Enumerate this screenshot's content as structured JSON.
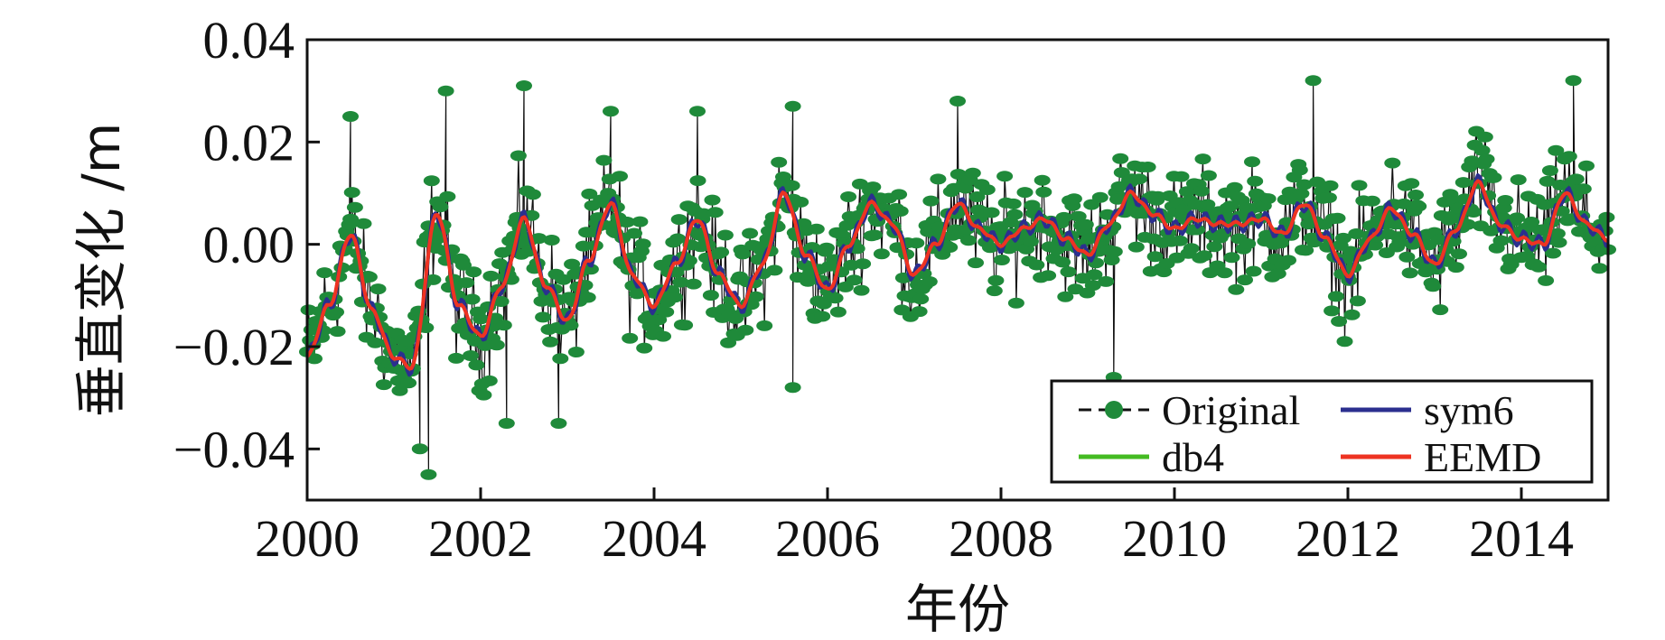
{
  "chart_data": {
    "type": "line",
    "title": "",
    "xlabel": "年份",
    "ylabel": "垂直变化 /m",
    "xlim": [
      2000,
      2015
    ],
    "ylim": [
      -0.05,
      0.04
    ],
    "xticks": [
      {
        "value": 2000,
        "label": "2000"
      },
      {
        "value": 2002,
        "label": "2002"
      },
      {
        "value": 2004,
        "label": "2004"
      },
      {
        "value": 2006,
        "label": "2006"
      },
      {
        "value": 2008,
        "label": "2008"
      },
      {
        "value": 2010,
        "label": "2010"
      },
      {
        "value": 2012,
        "label": "2012"
      },
      {
        "value": 2014,
        "label": "2014"
      }
    ],
    "yticks": [
      {
        "value": 0.04,
        "label": "0.04"
      },
      {
        "value": 0.02,
        "label": "0.02"
      },
      {
        "value": 0.0,
        "label": "0.00"
      },
      {
        "value": -0.02,
        "label": "−0.02"
      },
      {
        "value": -0.04,
        "label": "−0.04"
      }
    ],
    "grid": false,
    "legend_position": "bottom-right",
    "series": [
      {
        "name": "Original",
        "color": "#1f8a3a",
        "marker": "circle",
        "line_color": "#111111"
      },
      {
        "name": "db4",
        "color": "#44bb22"
      },
      {
        "name": "sym6",
        "color": "#2b2f8f"
      },
      {
        "name": "EEMD",
        "color": "#ee3322"
      }
    ],
    "trend_x": [
      2000.0,
      2000.25,
      2000.5,
      2000.75,
      2001.0,
      2001.2,
      2001.5,
      2001.75,
      2002.0,
      2002.25,
      2002.5,
      2002.75,
      2003.0,
      2003.25,
      2003.5,
      2003.75,
      2004.0,
      2004.25,
      2004.5,
      2004.75,
      2005.0,
      2005.25,
      2005.5,
      2005.75,
      2006.0,
      2006.25,
      2006.5,
      2006.75,
      2007.0,
      2007.25,
      2007.5,
      2007.75,
      2008.0,
      2008.25,
      2008.5,
      2008.75,
      2009.0,
      2009.25,
      2009.5,
      2009.75,
      2010.0,
      2010.25,
      2010.5,
      2010.75,
      2011.0,
      2011.25,
      2011.5,
      2011.75,
      2012.0,
      2012.25,
      2012.5,
      2012.75,
      2013.0,
      2013.25,
      2013.5,
      2013.75,
      2014.0,
      2014.25,
      2014.5,
      2014.75,
      2015.0
    ],
    "trend_y": [
      -0.022,
      -0.012,
      0.002,
      -0.013,
      -0.022,
      -0.024,
      0.006,
      -0.012,
      -0.018,
      -0.008,
      0.005,
      -0.008,
      -0.015,
      -0.003,
      0.008,
      -0.006,
      -0.012,
      -0.004,
      0.005,
      -0.006,
      -0.012,
      -0.004,
      0.01,
      -0.002,
      -0.009,
      0.0,
      0.008,
      0.004,
      -0.006,
      0.0,
      0.008,
      0.003,
      0.0,
      0.003,
      0.005,
      0.001,
      -0.002,
      0.004,
      0.01,
      0.006,
      0.003,
      0.005,
      0.004,
      0.004,
      0.005,
      0.002,
      0.008,
      0.001,
      -0.006,
      0.001,
      0.007,
      0.002,
      -0.004,
      0.003,
      0.012,
      0.004,
      0.001,
      0.0,
      0.01,
      0.004,
      0.001
    ],
    "original_amplitude": 0.016,
    "original_extremes": [
      {
        "x": 2001.4,
        "y": -0.045
      },
      {
        "x": 2001.3,
        "y": -0.04
      },
      {
        "x": 2002.5,
        "y": 0.031
      },
      {
        "x": 2001.6,
        "y": 0.03
      },
      {
        "x": 2000.5,
        "y": 0.025
      },
      {
        "x": 2003.5,
        "y": 0.026
      },
      {
        "x": 2004.5,
        "y": 0.026
      },
      {
        "x": 2005.6,
        "y": 0.027
      },
      {
        "x": 2005.6,
        "y": -0.028
      },
      {
        "x": 2009.3,
        "y": -0.026
      },
      {
        "x": 2011.6,
        "y": 0.032
      },
      {
        "x": 2014.6,
        "y": 0.032
      },
      {
        "x": 2007.5,
        "y": 0.028
      },
      {
        "x": 2002.9,
        "y": -0.035
      },
      {
        "x": 2002.3,
        "y": -0.035
      }
    ],
    "legend": [
      {
        "label": "Original",
        "series": "Original"
      },
      {
        "label": "sym6",
        "series": "sym6"
      },
      {
        "label": "db4",
        "series": "db4"
      },
      {
        "label": "EEMD",
        "series": "EEMD"
      }
    ]
  }
}
